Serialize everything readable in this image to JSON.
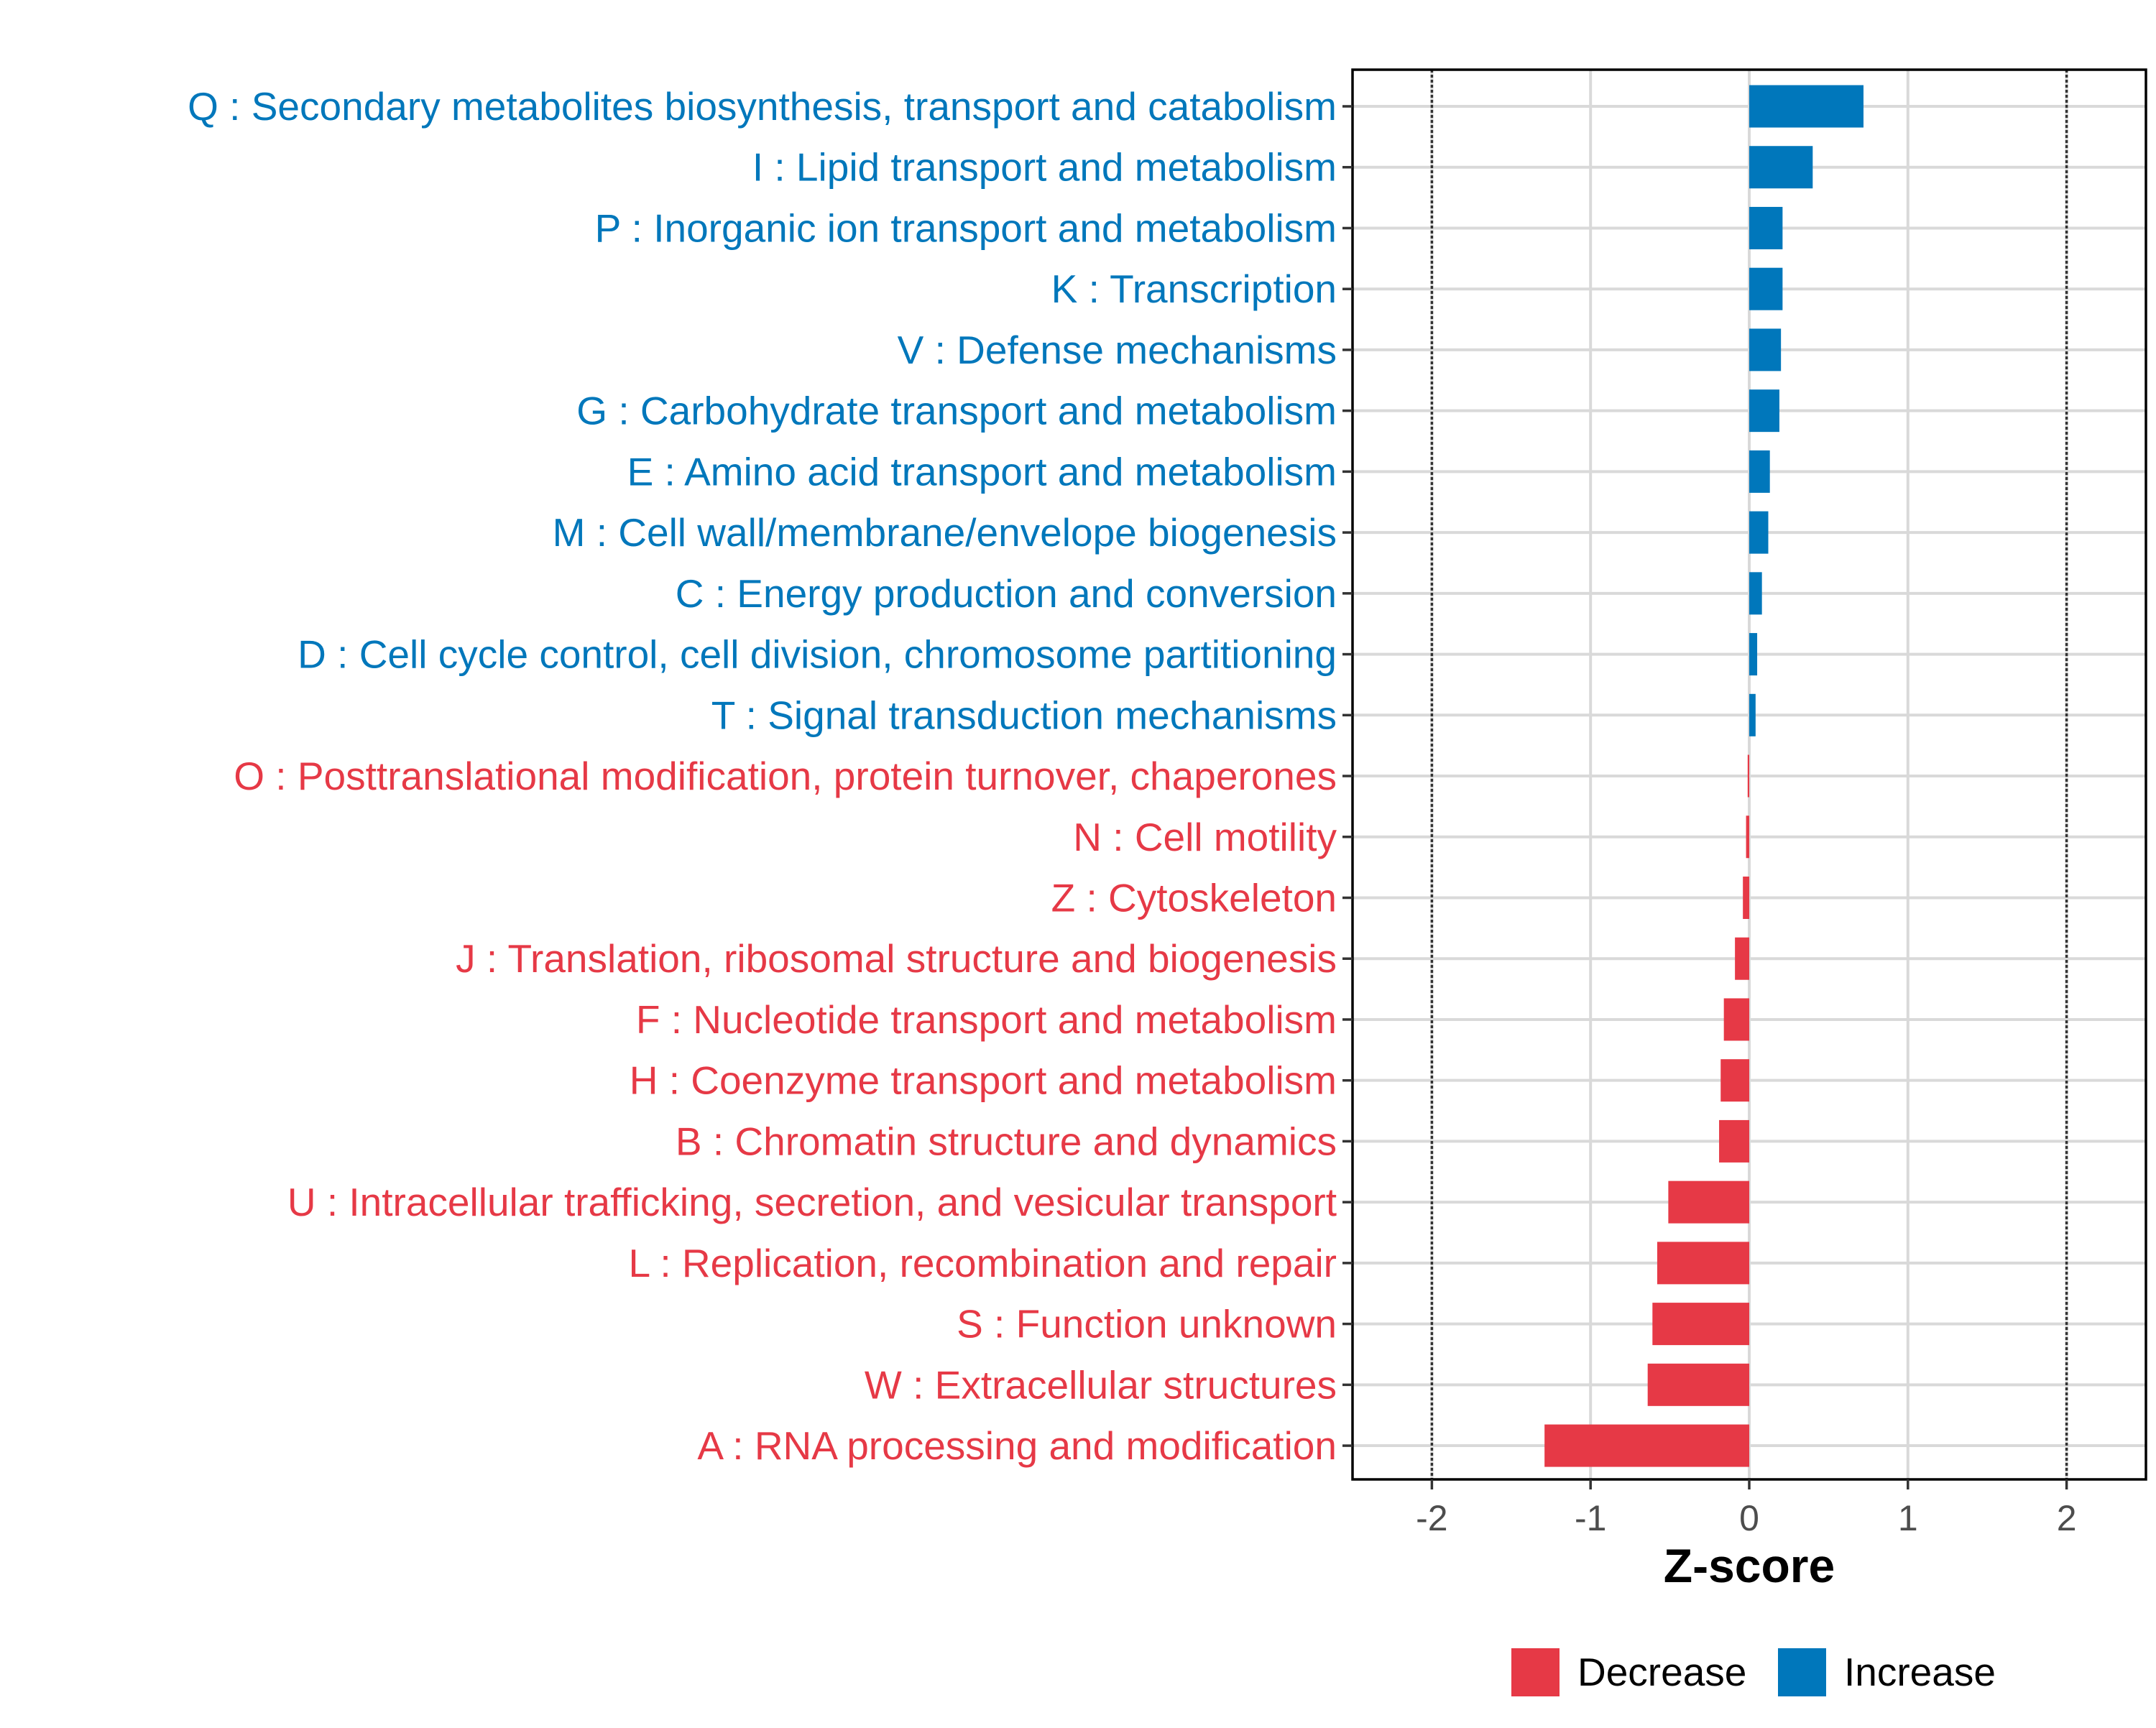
{
  "chart_data": {
    "type": "bar",
    "orientation": "horizontal",
    "xlabel": "Z-score",
    "xlim": [
      -2.5,
      2.5
    ],
    "xticks": [
      -2,
      -1,
      0,
      1,
      2
    ],
    "xtick_labels": [
      "-2",
      "-1",
      "0",
      "1",
      "2"
    ],
    "reference_lines": [
      -2,
      2
    ],
    "grid": true,
    "legend_position": "bottom",
    "colors": {
      "Decrease": "#e63946",
      "Increase": "#0077bb"
    },
    "legend": [
      {
        "label": "Decrease",
        "color": "#e63946"
      },
      {
        "label": "Increase",
        "color": "#0077bb"
      }
    ],
    "categories": [
      "Q : Secondary metabolites biosynthesis, transport and catabolism",
      "I : Lipid transport and metabolism",
      "P : Inorganic ion transport and metabolism",
      "K : Transcription",
      "V : Defense mechanisms",
      "G : Carbohydrate transport and metabolism",
      "E : Amino acid transport and metabolism",
      "M : Cell wall/membrane/envelope biogenesis",
      "C : Energy production and conversion",
      "D : Cell cycle control, cell division, chromosome partitioning",
      "T : Signal transduction mechanisms",
      "O : Posttranslational modification, protein turnover, chaperones",
      "N : Cell motility",
      "Z : Cytoskeleton",
      "J : Translation, ribosomal structure and biogenesis",
      "F : Nucleotide transport and metabolism",
      "H : Coenzyme transport and metabolism",
      "B : Chromatin structure and dynamics",
      "U : Intracellular trafficking, secretion, and vesicular transport",
      "L : Replication, recombination and repair",
      "S : Function unknown",
      "W : Extracellular structures",
      "A : RNA processing and modification"
    ],
    "values": [
      0.72,
      0.4,
      0.21,
      0.21,
      0.2,
      0.19,
      0.13,
      0.12,
      0.08,
      0.05,
      0.04,
      -0.01,
      -0.02,
      -0.04,
      -0.09,
      -0.16,
      -0.18,
      -0.19,
      -0.51,
      -0.58,
      -0.61,
      -0.64,
      -1.29
    ],
    "groups": [
      "Increase",
      "Increase",
      "Increase",
      "Increase",
      "Increase",
      "Increase",
      "Increase",
      "Increase",
      "Increase",
      "Increase",
      "Increase",
      "Decrease",
      "Decrease",
      "Decrease",
      "Decrease",
      "Decrease",
      "Decrease",
      "Decrease",
      "Decrease",
      "Decrease",
      "Decrease",
      "Decrease",
      "Decrease"
    ]
  }
}
